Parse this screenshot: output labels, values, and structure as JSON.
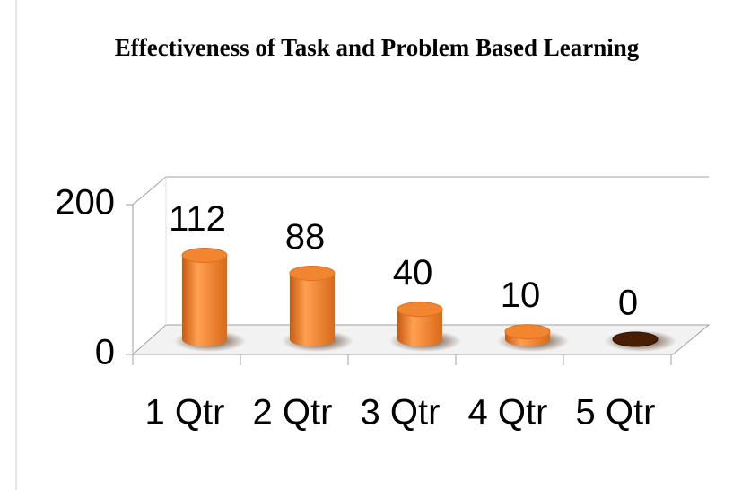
{
  "chart_data": {
    "type": "bar",
    "title": "Effectiveness of Task and Problem Based Learning",
    "categories": [
      "1 Qtr",
      "2 Qtr",
      "3 Qtr",
      "4 Qtr",
      "5 Qtr"
    ],
    "values": [
      112,
      88,
      40,
      10,
      0
    ],
    "color": "#f28530",
    "ylim": [
      0,
      200
    ],
    "yticks": [
      0,
      200
    ]
  }
}
